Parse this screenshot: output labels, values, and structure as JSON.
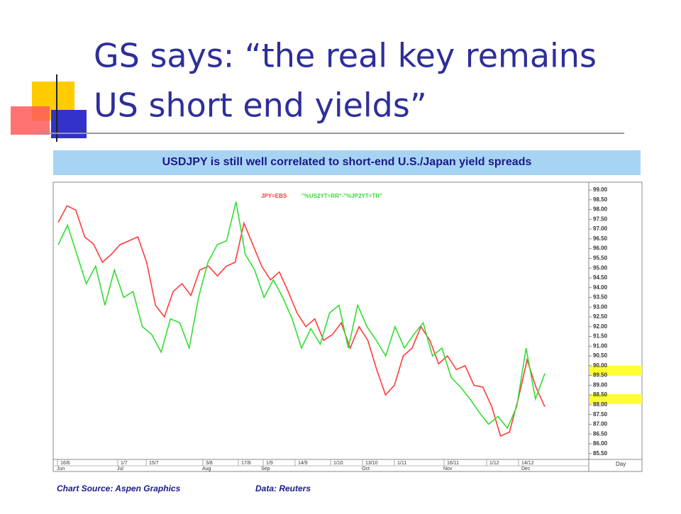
{
  "slide": {
    "title_lines": [
      "GS says: “the real key remains",
      "US short end yields”"
    ]
  },
  "chart_data": {
    "type": "line",
    "title": "USDJPY is still well correlated to short-end U.S./Japan yield spreads",
    "source": "Chart Source: Aspen Graphics",
    "data_credit": "Data: Reuters",
    "x_tick_labels": [
      "16/6",
      "1/7",
      "15/7",
      "3/8",
      "17/8",
      "1/9",
      "14/9",
      "1/10",
      "13/10",
      "1/11",
      "16/11",
      "1/12",
      "14/12"
    ],
    "months": [
      "Jun",
      "Jul",
      "Aug",
      "Sep",
      "Oct",
      "Nov",
      "Dec"
    ],
    "x_unit": "Day",
    "series": [
      {
        "name": "JPY=EBS",
        "color": "#ff3b3b",
        "values": [
          97.34,
          98.19,
          97.97,
          96.6,
          96.23,
          95.3,
          95.7,
          96.2,
          96.4,
          96.6,
          95.3,
          93.1,
          92.5,
          93.8,
          94.2,
          93.6,
          94.9,
          95.1,
          94.6,
          95.1,
          95.3,
          97.3,
          96.2,
          95.1,
          94.4,
          94.8,
          93.8,
          92.7,
          92.0,
          92.4,
          91.3,
          91.6,
          92.2,
          90.9,
          92.0,
          91.3,
          89.8,
          88.5,
          89.0,
          90.5,
          90.9,
          92.0,
          91.3,
          90.1,
          90.5,
          89.8,
          90.0,
          89.0,
          88.9,
          87.9,
          86.4,
          86.6,
          88.3,
          90.3,
          88.9,
          87.9
        ]
      },
      {
        "name": "\"%US2YT=RR\"-\"%JP2YT=TR\"",
        "color": "#33dd33",
        "values": [
          96.2,
          97.2,
          95.7,
          94.2,
          95.1,
          93.1,
          94.9,
          93.5,
          93.8,
          92.0,
          91.6,
          90.7,
          92.4,
          92.2,
          90.9,
          93.5,
          95.3,
          96.2,
          96.4,
          98.4,
          95.7,
          94.9,
          93.5,
          94.4,
          93.5,
          92.4,
          90.9,
          91.9,
          91.1,
          92.7,
          93.1,
          90.9,
          93.1,
          92.0,
          91.3,
          90.5,
          92.0,
          90.9,
          91.6,
          92.2,
          90.5,
          90.9,
          89.4,
          88.9,
          88.3,
          87.6,
          87.0,
          87.4,
          86.8,
          87.9,
          90.9,
          88.3,
          89.6
        ]
      }
    ],
    "ylim": [
      85.2,
      99.4
    ],
    "yticks": [
      {
        "value": 99,
        "label": "99.00"
      },
      {
        "value": 98.5,
        "label": "98.50"
      },
      {
        "value": 98,
        "label": "98.00"
      },
      {
        "value": 97.5,
        "label": "97.50"
      },
      {
        "value": 97,
        "label": "97.00"
      },
      {
        "value": 96.5,
        "label": "96.50"
      },
      {
        "value": 96,
        "label": "96.00"
      },
      {
        "value": 95.5,
        "label": "95.50"
      },
      {
        "value": 95,
        "label": "95.00"
      },
      {
        "value": 94.5,
        "label": "94.50"
      },
      {
        "value": 94,
        "label": "94.00"
      },
      {
        "value": 93.5,
        "label": "93.50"
      },
      {
        "value": 93,
        "label": "93.00"
      },
      {
        "value": 92.5,
        "label": "92.50"
      },
      {
        "value": 92,
        "label": "92.00"
      },
      {
        "value": 91.5,
        "label": "91.50"
      },
      {
        "value": 91,
        "label": "91.00"
      },
      {
        "value": 90.5,
        "label": "90.50"
      },
      {
        "value": 90,
        "label": "90.00"
      },
      {
        "value": 89.5,
        "label": "89.50"
      },
      {
        "value": 89,
        "label": "89.00"
      },
      {
        "value": 88.5,
        "label": "88.50"
      },
      {
        "value": 88,
        "label": "88.00"
      },
      {
        "value": 87.5,
        "label": "87.50"
      },
      {
        "value": 87,
        "label": "87.00"
      },
      {
        "value": 86.5,
        "label": "86.50"
      },
      {
        "value": 86,
        "label": "86.00"
      },
      {
        "value": 85.5,
        "label": "85.50"
      }
    ],
    "grid": false
  }
}
